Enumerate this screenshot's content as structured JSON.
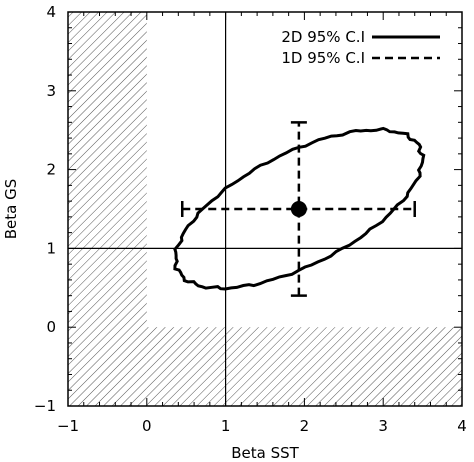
{
  "chart_data": {
    "type": "scatter",
    "xlabel": "Beta SST",
    "ylabel": "Beta GS",
    "xlim": [
      -1,
      4
    ],
    "ylim": [
      -1,
      4
    ],
    "xticks": [
      "-1",
      "0",
      "1",
      "2",
      "3",
      "4"
    ],
    "yticks": [
      "-1",
      "0",
      "1",
      "2",
      "3",
      "4"
    ],
    "grid": false,
    "reference_lines": {
      "x": 1,
      "y": 1
    },
    "hatched_regions": [
      {
        "x": [
          -1,
          0
        ],
        "y": [
          -1,
          4
        ]
      },
      {
        "x": [
          0,
          4
        ],
        "y": [
          -1,
          0
        ]
      }
    ],
    "point_estimate": {
      "x": 1.93,
      "y": 1.5
    },
    "interval_1d": {
      "x": [
        0.45,
        3.4
      ],
      "y": [
        0.4,
        2.6
      ]
    },
    "ellipse_2d": {
      "center": [
        1.93,
        1.5
      ],
      "semi_major": 1.72,
      "semi_minor": 0.71,
      "angle_deg": 27
    },
    "legend": {
      "position": "top-right",
      "entries": [
        {
          "label": "2D 95% C.I",
          "style": "solid"
        },
        {
          "label": "1D 95% C.I",
          "style": "dashed"
        }
      ]
    }
  }
}
